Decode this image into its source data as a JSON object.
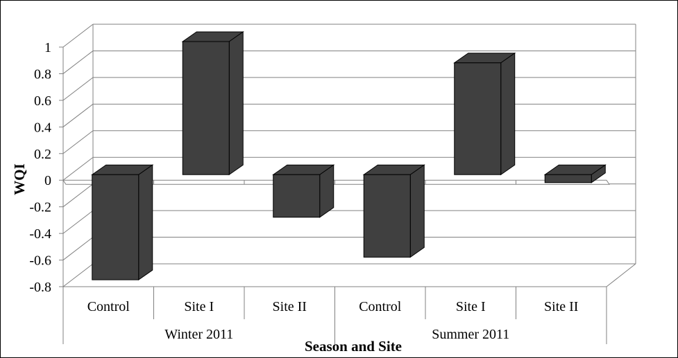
{
  "chart_data": {
    "type": "bar",
    "style": "3d-column",
    "xlabel": "Season and Site",
    "ylabel": "WQI",
    "ylim": [
      -0.8,
      1
    ],
    "yticks": [
      "-0.8",
      "-0.6",
      "-0.4",
      "-0.2",
      "0",
      "0.2",
      "0.4",
      "0.6",
      "0.8",
      "1"
    ],
    "grid": true,
    "groups": [
      {
        "label": "Winter 2011",
        "categories": [
          "Control",
          "Site I",
          "Site II"
        ]
      },
      {
        "label": "Summer 2011",
        "categories": [
          "Control",
          "Site I",
          "Site II"
        ]
      }
    ],
    "values": [
      -0.79,
      1.0,
      -0.32,
      -0.62,
      0.84,
      -0.06
    ],
    "bar_color": "#404040",
    "grid_color": "#808080"
  }
}
